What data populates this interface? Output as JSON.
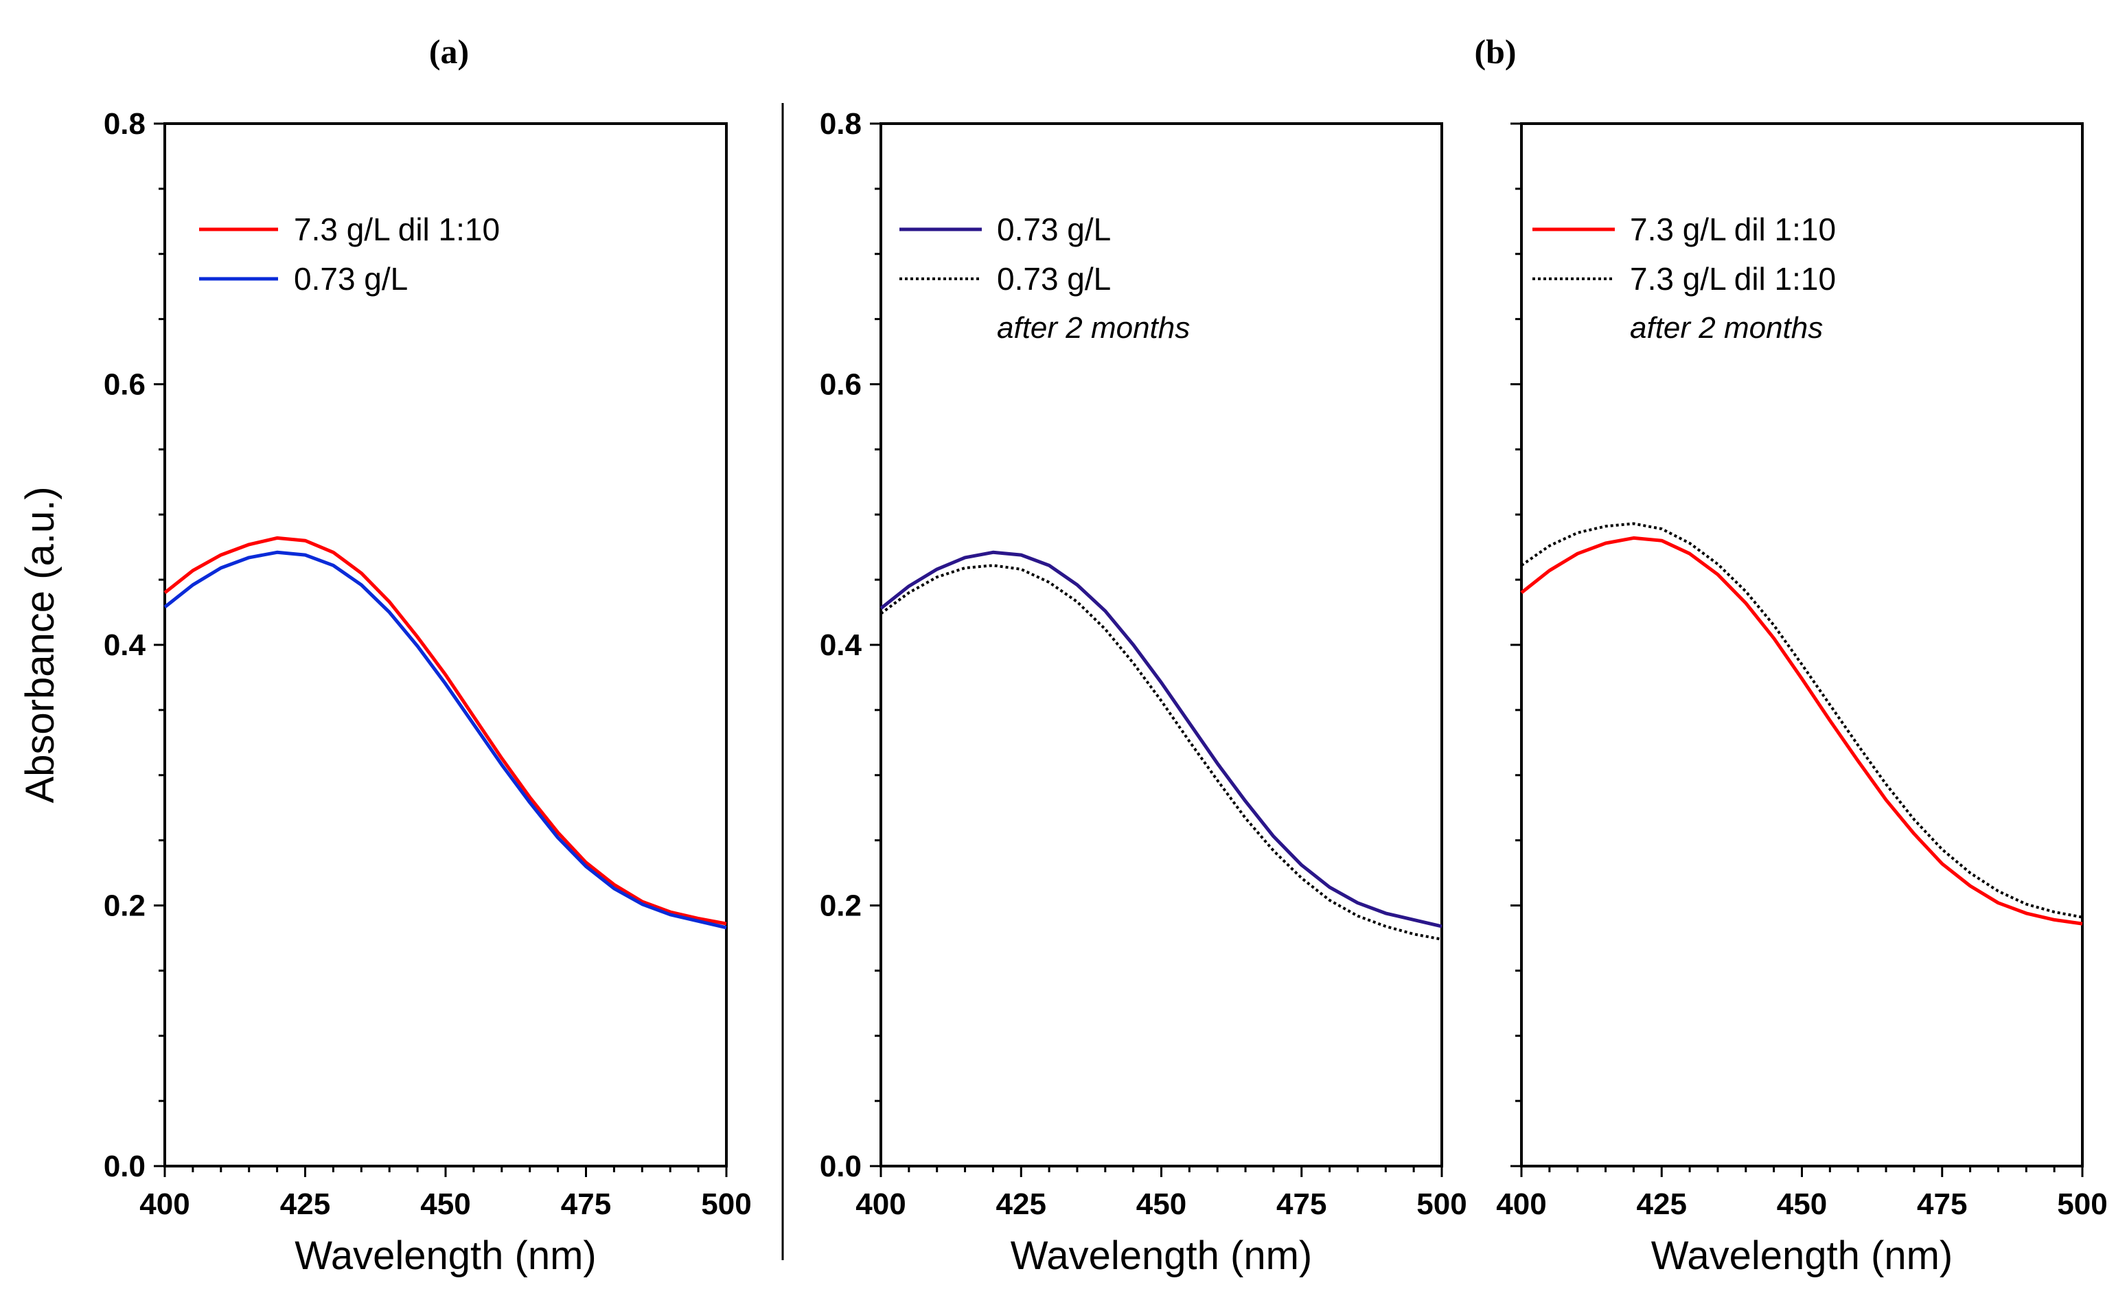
{
  "figure": {
    "panel_labels": [
      "(a)",
      "(b)"
    ]
  },
  "chart_data": [
    {
      "type": "line",
      "panel": "a",
      "xlabel": "Wavelength (nm)",
      "ylabel": "Absorbance (a.u.)",
      "xlim": [
        400,
        500
      ],
      "ylim": [
        0,
        0.8
      ],
      "xticks": [
        "400",
        "425",
        "450",
        "475",
        "500"
      ],
      "yticks": [
        "0.0",
        "0.2",
        "0.4",
        "0.6",
        "0.8"
      ],
      "legend_position": "top-left",
      "series": [
        {
          "name": "7.3 g/L dil 1:10",
          "color": "#ff0000",
          "style": "solid",
          "x": [
            400,
            405,
            410,
            415,
            420,
            425,
            430,
            435,
            440,
            445,
            450,
            455,
            460,
            465,
            470,
            475,
            480,
            485,
            490,
            495,
            500
          ],
          "y": [
            0.44,
            0.457,
            0.469,
            0.477,
            0.482,
            0.48,
            0.471,
            0.455,
            0.433,
            0.406,
            0.377,
            0.345,
            0.313,
            0.283,
            0.256,
            0.233,
            0.216,
            0.203,
            0.195,
            0.19,
            0.186
          ]
        },
        {
          "name": "0.73 g/L",
          "color": "#0a2bd8",
          "style": "solid",
          "x": [
            400,
            405,
            410,
            415,
            420,
            425,
            430,
            435,
            440,
            445,
            450,
            455,
            460,
            465,
            470,
            475,
            480,
            485,
            490,
            495,
            500
          ],
          "y": [
            0.429,
            0.446,
            0.459,
            0.467,
            0.471,
            0.469,
            0.461,
            0.446,
            0.425,
            0.399,
            0.37,
            0.339,
            0.308,
            0.279,
            0.252,
            0.23,
            0.213,
            0.201,
            0.193,
            0.188,
            0.183
          ]
        }
      ]
    },
    {
      "type": "line",
      "panel": "b-left",
      "xlabel": "Wavelength (nm)",
      "ylabel": "",
      "xlim": [
        400,
        500
      ],
      "ylim": [
        0,
        0.8
      ],
      "xticks": [
        "400",
        "425",
        "450",
        "475",
        "500"
      ],
      "yticks": [
        "0.0",
        "0.2",
        "0.4",
        "0.6",
        "0.8"
      ],
      "legend_position": "top-left",
      "series": [
        {
          "name": "0.73 g/L",
          "color": "#2a168a",
          "style": "solid",
          "x": [
            400,
            405,
            410,
            415,
            420,
            425,
            430,
            435,
            440,
            445,
            450,
            455,
            460,
            465,
            470,
            475,
            480,
            485,
            490,
            495,
            500
          ],
          "y": [
            0.428,
            0.445,
            0.458,
            0.467,
            0.471,
            0.469,
            0.461,
            0.446,
            0.426,
            0.4,
            0.371,
            0.34,
            0.309,
            0.28,
            0.253,
            0.231,
            0.214,
            0.202,
            0.194,
            0.189,
            0.184
          ]
        },
        {
          "name": "0.73 g/L",
          "note": "after 2 months",
          "color": "#000000",
          "style": "dotted",
          "x": [
            400,
            405,
            410,
            415,
            420,
            425,
            430,
            435,
            440,
            445,
            450,
            455,
            460,
            465,
            470,
            475,
            480,
            485,
            490,
            495,
            500
          ],
          "y": [
            0.424,
            0.44,
            0.452,
            0.459,
            0.461,
            0.458,
            0.448,
            0.433,
            0.412,
            0.386,
            0.357,
            0.326,
            0.296,
            0.267,
            0.242,
            0.221,
            0.204,
            0.192,
            0.184,
            0.178,
            0.174
          ]
        }
      ]
    },
    {
      "type": "line",
      "panel": "b-right",
      "xlabel": "Wavelength (nm)",
      "ylabel": "",
      "xlim": [
        400,
        500
      ],
      "ylim": [
        0,
        0.8
      ],
      "xticks": [
        "400",
        "425",
        "450",
        "475",
        "500"
      ],
      "yticks": [],
      "legend_position": "top-left",
      "series": [
        {
          "name": "7.3 g/L dil 1:10",
          "color": "#ff0000",
          "style": "solid",
          "x": [
            400,
            405,
            410,
            415,
            420,
            425,
            430,
            435,
            440,
            445,
            450,
            455,
            460,
            465,
            470,
            475,
            480,
            485,
            490,
            495,
            500
          ],
          "y": [
            0.44,
            0.457,
            0.47,
            0.478,
            0.482,
            0.48,
            0.47,
            0.454,
            0.432,
            0.405,
            0.374,
            0.342,
            0.311,
            0.281,
            0.255,
            0.232,
            0.215,
            0.202,
            0.194,
            0.189,
            0.186
          ]
        },
        {
          "name": "7.3 g/L dil 1:10",
          "note": "after 2 months",
          "color": "#000000",
          "style": "dotted",
          "x": [
            400,
            405,
            410,
            415,
            420,
            425,
            430,
            435,
            440,
            445,
            450,
            455,
            460,
            465,
            470,
            475,
            480,
            485,
            490,
            495,
            500
          ],
          "y": [
            0.461,
            0.476,
            0.486,
            0.491,
            0.493,
            0.489,
            0.478,
            0.462,
            0.441,
            0.415,
            0.385,
            0.354,
            0.323,
            0.293,
            0.266,
            0.243,
            0.225,
            0.211,
            0.201,
            0.195,
            0.191
          ]
        }
      ]
    }
  ]
}
